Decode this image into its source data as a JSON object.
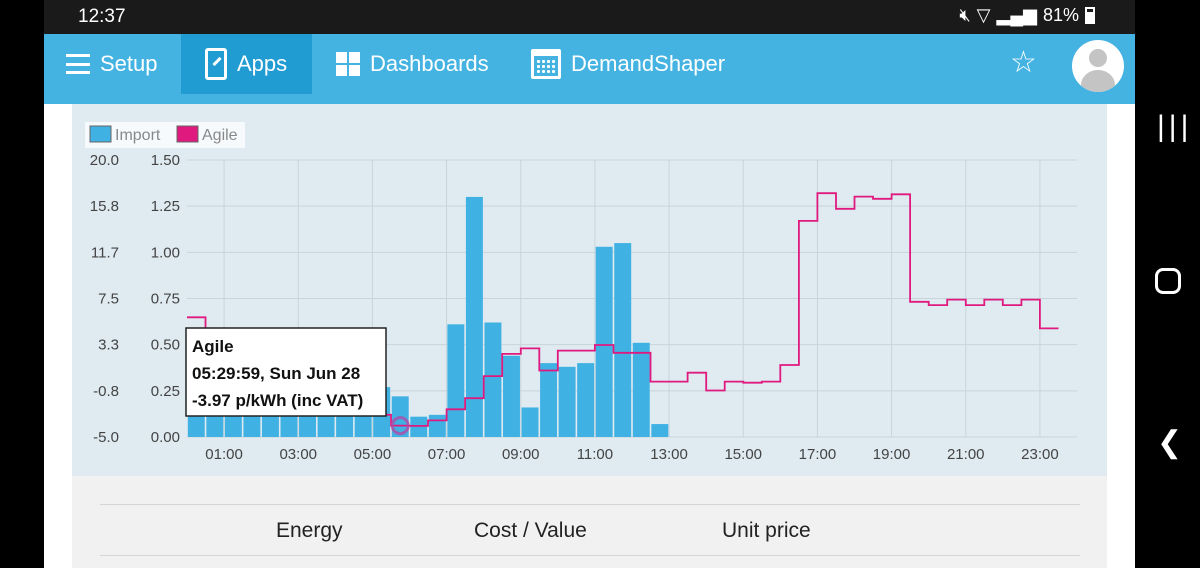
{
  "status_bar": {
    "time": "12:37",
    "battery": "81%"
  },
  "nav": {
    "setup_label": "Setup",
    "apps_label": "Apps",
    "dashboards_label": "Dashboards",
    "demandshaper_label": "DemandShaper"
  },
  "table": {
    "headers": [
      "Energy",
      "Cost / Value",
      "Unit price"
    ]
  },
  "tooltip": {
    "series": "Agile",
    "time": "05:29:59, Sun Jun 28",
    "value": "-3.97 p/kWh (inc VAT)"
  },
  "colors": {
    "import": "#3fb1e3",
    "agile": "#e0197f",
    "nav": "#44b3e2",
    "nav_active": "#209cd3"
  },
  "chart_data": {
    "type": "bar",
    "legend": [
      "Import",
      "Agile"
    ],
    "legend_position": "top-left",
    "grid": true,
    "x_ticks": [
      "01:00",
      "03:00",
      "05:00",
      "07:00",
      "09:00",
      "11:00",
      "13:00",
      "15:00",
      "17:00",
      "19:00",
      "21:00",
      "23:00"
    ],
    "x_range_hours": [
      0,
      24
    ],
    "y_left_ticks": [
      "20.0",
      "15.8",
      "11.7",
      "7.5",
      "3.3",
      "-0.8",
      "-5.0"
    ],
    "y_left_range": [
      -5.0,
      20.0
    ],
    "y_right_ticks": [
      "1.50",
      "1.25",
      "1.00",
      "0.75",
      "0.50",
      "0.25",
      "0.00"
    ],
    "y_right_range": [
      0,
      1.5
    ],
    "series": [
      {
        "name": "Import",
        "type": "bar",
        "axis": "right",
        "x": [
          0.0,
          0.5,
          1.0,
          1.5,
          2.0,
          2.5,
          3.0,
          3.5,
          4.0,
          4.5,
          5.0,
          5.5,
          6.0,
          6.5,
          7.0,
          7.5,
          8.0,
          8.5,
          9.0,
          9.5,
          10.0,
          10.5,
          11.0,
          11.5,
          12.0,
          12.5
        ],
        "values": [
          0.29,
          0.31,
          0.29,
          0.26,
          0.28,
          0.3,
          0.3,
          0.29,
          0.29,
          0.28,
          0.27,
          0.22,
          0.11,
          0.12,
          0.61,
          1.3,
          0.62,
          0.44,
          0.16,
          0.4,
          0.38,
          0.4,
          1.03,
          1.05,
          0.51,
          0.07
        ]
      },
      {
        "name": "Agile",
        "type": "step",
        "axis": "left",
        "x": [
          0.0,
          0.5,
          1.0,
          1.5,
          2.0,
          2.5,
          3.0,
          3.5,
          4.0,
          4.5,
          5.0,
          5.5,
          6.0,
          6.5,
          7.0,
          7.5,
          8.0,
          8.5,
          9.0,
          9.5,
          10.0,
          10.5,
          11.0,
          11.5,
          12.0,
          12.5,
          13.0,
          13.5,
          14.0,
          14.5,
          15.0,
          15.5,
          16.0,
          16.5,
          17.0,
          17.5,
          18.0,
          18.5,
          19.0,
          19.5,
          20.0,
          20.5,
          21.0,
          21.5,
          22.0,
          22.5,
          23.0
        ],
        "values": [
          5.8,
          4.0,
          3.0,
          2.0,
          3.3,
          0.0,
          0.3,
          -0.5,
          -0.8,
          -2.0,
          -3.0,
          -3.97,
          -4.0,
          -3.5,
          -2.5,
          -1.5,
          0.5,
          2.5,
          3.0,
          1.0,
          2.8,
          2.8,
          3.3,
          2.6,
          2.6,
          0.0,
          0.0,
          0.8,
          -0.8,
          0.0,
          -0.1,
          0.0,
          1.5,
          14.5,
          17.0,
          15.6,
          16.7,
          16.5,
          16.9,
          7.2,
          6.9,
          7.4,
          6.9,
          7.4,
          6.9,
          7.4,
          4.8
        ]
      }
    ]
  }
}
